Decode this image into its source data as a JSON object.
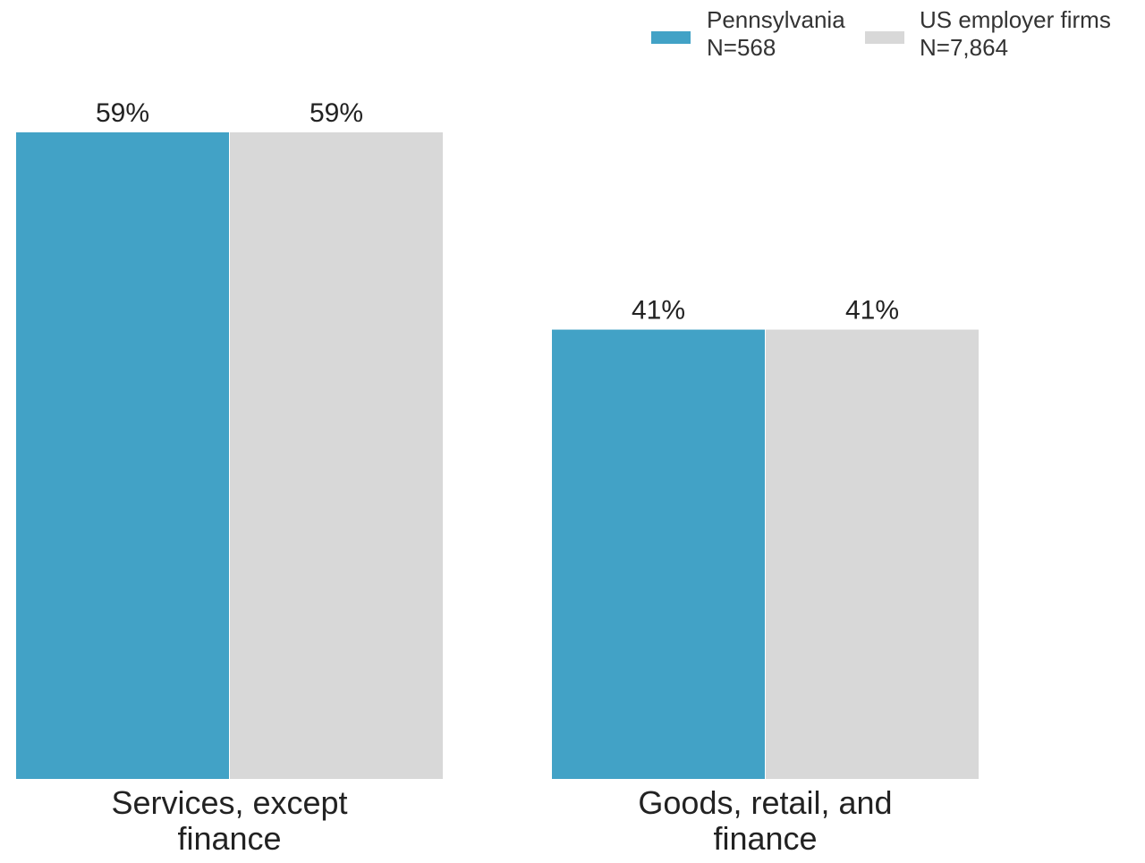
{
  "chart_data": {
    "type": "bar",
    "categories": [
      [
        "Services, except",
        "finance"
      ],
      [
        "Goods, retail, and",
        "finance"
      ]
    ],
    "series": [
      {
        "name": "Pennsylvania",
        "n_label": "N=568",
        "color": "#42a2c6",
        "values": [
          59,
          41
        ],
        "labels": [
          "59%",
          "41%"
        ]
      },
      {
        "name": "US employer firms",
        "n_label": "N=7,864",
        "color": "#d8d8d8",
        "values": [
          59,
          41
        ],
        "labels": [
          "59%",
          "41%"
        ]
      }
    ],
    "unit": "%",
    "ylim": [
      0,
      59
    ],
    "grid": false,
    "legend_position": "top-right"
  }
}
